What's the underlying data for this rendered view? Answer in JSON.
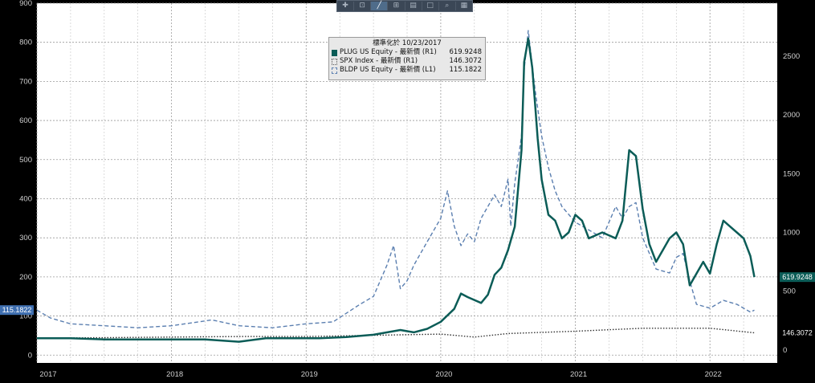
{
  "toolbar": {
    "buttons": [
      {
        "name": "crosshair-tool-button",
        "glyph": "✚"
      },
      {
        "name": "zoom-tool-button",
        "glyph": "⊡"
      },
      {
        "name": "draw-line-button",
        "glyph": "╱"
      },
      {
        "name": "indicator-button",
        "glyph": "⊞"
      },
      {
        "name": "annotate-button",
        "glyph": "▤"
      },
      {
        "name": "panel-button",
        "glyph": "□"
      },
      {
        "name": "search-button",
        "glyph": "⌕"
      },
      {
        "name": "settings-button",
        "glyph": "▦"
      }
    ]
  },
  "legend": {
    "title": "標準化於 10/23/2017",
    "items": [
      {
        "label": "PLUG US Equity - 最新價 (R1)",
        "value": "619.9248",
        "color": "#0b5c57",
        "style": "solid"
      },
      {
        "label": "SPX Index - 最新價 (R1)",
        "value": "146.3072",
        "color": "#d0d0d0",
        "style": "dotted"
      },
      {
        "label": "BLDP US Equity - 最新價 (L1)",
        "value": "115.1822",
        "color": "#5b7fb0",
        "style": "dashed"
      }
    ]
  },
  "chart_data": {
    "type": "line",
    "x_ticks": [
      "2017",
      "2018",
      "2019",
      "2020",
      "2021",
      "2022"
    ],
    "x_tick_dates": [
      2017.0,
      2018.0,
      2019.0,
      2020.0,
      2021.0,
      2022.0
    ],
    "xlim": [
      2017.0,
      2022.5
    ],
    "left_axis": {
      "ticks": [
        0,
        100,
        200,
        300,
        400,
        500,
        600,
        700,
        800,
        900
      ],
      "ylim": [
        -20,
        900
      ]
    },
    "right_axis": {
      "ticks": [
        0,
        500,
        1000,
        1500,
        2000,
        2500
      ],
      "ylim": [
        -110,
        2950
      ]
    },
    "grid": true,
    "last_value_labels": [
      {
        "axis": "left",
        "value": 115.1822,
        "text": "115.1822",
        "color": "#3f6fb0",
        "text_color": "#ffffff"
      },
      {
        "axis": "right",
        "value": 619.9248,
        "text": "619.9248",
        "color": "#0b5c57",
        "text_color": "#ffffff"
      },
      {
        "axis": "right",
        "value": 146.3072,
        "text": "146.3072",
        "color": "#000000",
        "text_color": "#ffffff"
      }
    ],
    "series": [
      {
        "name": "PLUG US Equity - 最新價 (R1)",
        "axis": "right",
        "color": "#0b5c57",
        "style": "solid",
        "x": [
          2017.0,
          2017.25,
          2017.5,
          2017.75,
          2018.0,
          2018.25,
          2018.5,
          2018.7,
          2018.9,
          2019.1,
          2019.3,
          2019.5,
          2019.7,
          2019.8,
          2019.9,
          2020.0,
          2020.1,
          2020.15,
          2020.2,
          2020.3,
          2020.35,
          2020.4,
          2020.45,
          2020.5,
          2020.55,
          2020.6,
          2020.62,
          2020.65,
          2020.68,
          2020.7,
          2020.72,
          2020.75,
          2020.8,
          2020.85,
          2020.9,
          2020.95,
          2021.0,
          2021.05,
          2021.1,
          2021.2,
          2021.3,
          2021.35,
          2021.4,
          2021.45,
          2021.5,
          2021.55,
          2021.6,
          2021.65,
          2021.7,
          2021.75,
          2021.8,
          2021.85,
          2021.9,
          2021.95,
          2022.0,
          2022.05,
          2022.1,
          2022.15,
          2022.2,
          2022.25,
          2022.3,
          2022.33
        ],
        "y": [
          100,
          100,
          90,
          90,
          90,
          90,
          70,
          100,
          100,
          100,
          110,
          130,
          170,
          150,
          180,
          240,
          350,
          480,
          450,
          400,
          470,
          640,
          700,
          850,
          1050,
          1700,
          2450,
          2650,
          2400,
          2100,
          1800,
          1450,
          1150,
          1100,
          950,
          1000,
          1150,
          1100,
          950,
          1000,
          950,
          1100,
          1700,
          1650,
          1200,
          900,
          750,
          850,
          950,
          1000,
          900,
          550,
          650,
          750,
          650,
          900,
          1100,
          1050,
          1000,
          950,
          800,
          620
        ]
      },
      {
        "name": "SPX Index - 最新價 (R1)",
        "axis": "right",
        "color": "#d0d0d0",
        "style": "dotted",
        "x": [
          2017.0,
          2017.5,
          2018.0,
          2018.5,
          2019.0,
          2019.5,
          2020.0,
          2020.25,
          2020.5,
          2021.0,
          2021.5,
          2022.0,
          2022.33
        ],
        "y": [
          100,
          105,
          110,
          115,
          115,
          125,
          135,
          110,
          140,
          160,
          185,
          185,
          146
        ]
      },
      {
        "name": "BLDP US Equity - 最新價 (L1)",
        "axis": "left",
        "color": "#5b7fb0",
        "style": "dashed",
        "x": [
          2017.0,
          2017.1,
          2017.25,
          2017.5,
          2017.75,
          2018.0,
          2018.2,
          2018.3,
          2018.5,
          2018.75,
          2019.0,
          2019.2,
          2019.4,
          2019.5,
          2019.6,
          2019.65,
          2019.7,
          2019.75,
          2019.8,
          2019.9,
          2020.0,
          2020.05,
          2020.1,
          2020.15,
          2020.2,
          2020.25,
          2020.3,
          2020.4,
          2020.45,
          2020.5,
          2020.52,
          2020.55,
          2020.6,
          2020.62,
          2020.65,
          2020.7,
          2020.75,
          2020.8,
          2020.85,
          2020.9,
          2021.0,
          2021.1,
          2021.2,
          2021.3,
          2021.35,
          2021.4,
          2021.45,
          2021.5,
          2021.6,
          2021.7,
          2021.75,
          2021.8,
          2021.85,
          2021.9,
          2022.0,
          2022.1,
          2022.2,
          2022.3,
          2022.33
        ],
        "y": [
          115,
          95,
          80,
          75,
          70,
          75,
          85,
          90,
          75,
          70,
          80,
          85,
          130,
          150,
          230,
          280,
          170,
          190,
          230,
          290,
          350,
          420,
          330,
          280,
          310,
          290,
          350,
          410,
          380,
          450,
          330,
          440,
          560,
          730,
          830,
          680,
          560,
          480,
          420,
          380,
          340,
          320,
          300,
          380,
          350,
          380,
          390,
          300,
          220,
          210,
          250,
          260,
          190,
          130,
          120,
          140,
          130,
          110,
          115
        ]
      }
    ]
  }
}
